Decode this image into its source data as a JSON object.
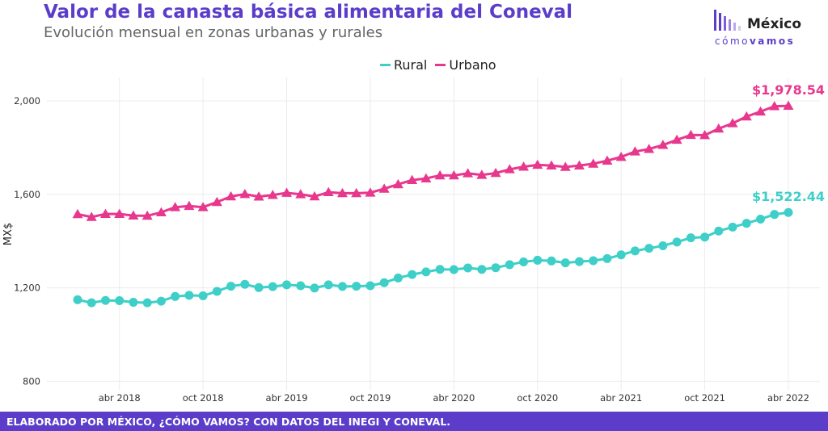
{
  "title": "Valor de la canasta básica alimentaria del Coneval",
  "subtitle": "Evolución mensual en zonas urbanas y rurales",
  "logo": {
    "word": "México",
    "tag_light": "cómo",
    "tag_bold": "vamos"
  },
  "footer": "ELABORADO POR MÉXICO, ¿CÓMO VAMOS? CON DATOS DEL INEGI Y CONEVAL.",
  "colors": {
    "rural": "#3ecfc8",
    "urbano": "#e8388e",
    "brand": "#5b3dc9"
  },
  "chart_data": {
    "type": "line",
    "ylabel": "MX$",
    "ylim": [
      760,
      2100
    ],
    "yticks": [
      800,
      1200,
      1600,
      2000
    ],
    "ytick_labels": [
      "800",
      "1,200",
      "1,600",
      "2,000"
    ],
    "xticks": [
      {
        "index": 3,
        "label": "abr 2018"
      },
      {
        "index": 9,
        "label": "oct 2018"
      },
      {
        "index": 15,
        "label": "abr 2019"
      },
      {
        "index": 21,
        "label": "oct 2019"
      },
      {
        "index": 27,
        "label": "abr 2020"
      },
      {
        "index": 33,
        "label": "oct 2020"
      },
      {
        "index": 39,
        "label": "abr 2021"
      },
      {
        "index": 45,
        "label": "oct 2021"
      },
      {
        "index": 51,
        "label": "abr 2022"
      }
    ],
    "x_start": "ene 2018",
    "x_end": "abr 2022",
    "grid": true,
    "legend_position": "top",
    "series": [
      {
        "name": "Rural",
        "marker": "circle",
        "end_label": "$1,522.44",
        "values": [
          1149,
          1136,
          1146,
          1145,
          1138,
          1136,
          1143,
          1163,
          1168,
          1166,
          1185,
          1207,
          1215,
          1201,
          1205,
          1213,
          1209,
          1199,
          1213,
          1206,
          1207,
          1209,
          1222,
          1242,
          1257,
          1268,
          1279,
          1278,
          1285,
          1279,
          1286,
          1299,
          1311,
          1318,
          1315,
          1307,
          1312,
          1316,
          1325,
          1341,
          1358,
          1369,
          1380,
          1396,
          1414,
          1417,
          1443,
          1460,
          1476,
          1494,
          1514,
          1522.44
        ]
      },
      {
        "name": "Urbano",
        "marker": "triangle",
        "end_label": "$1,978.54",
        "values": [
          1515,
          1503,
          1516,
          1516,
          1509,
          1508,
          1523,
          1545,
          1550,
          1545,
          1567,
          1591,
          1601,
          1590,
          1597,
          1606,
          1600,
          1591,
          1609,
          1605,
          1605,
          1607,
          1624,
          1643,
          1661,
          1668,
          1681,
          1681,
          1690,
          1683,
          1691,
          1707,
          1718,
          1726,
          1723,
          1717,
          1723,
          1731,
          1744,
          1760,
          1783,
          1794,
          1811,
          1833,
          1854,
          1853,
          1881,
          1904,
          1933,
          1954,
          1977,
          1978.54
        ]
      }
    ]
  }
}
